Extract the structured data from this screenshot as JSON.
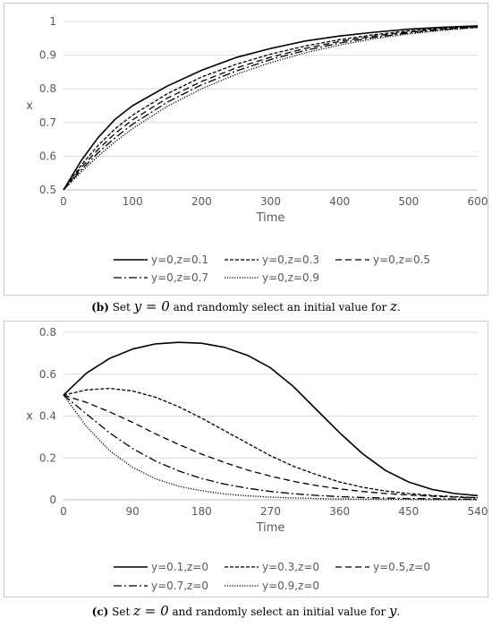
{
  "chart_data": [
    {
      "type": "line",
      "xlabel": "Time",
      "ylabel": "x",
      "xlim": [
        0,
        600
      ],
      "ylim": [
        0.5,
        1
      ],
      "xticks": [
        0,
        100,
        200,
        300,
        400,
        500,
        600
      ],
      "yticks": [
        0.5,
        0.6,
        0.7,
        0.8,
        0.9,
        1
      ],
      "grid": "horizontal",
      "legend": "bottom",
      "series": [
        {
          "name": "y=0,z=0.1",
          "dash": "solid",
          "x": [
            0,
            25,
            50,
            75,
            100,
            150,
            200,
            250,
            300,
            350,
            400,
            450,
            500,
            550,
            600
          ],
          "y": [
            0.5,
            0.585,
            0.655,
            0.71,
            0.75,
            0.808,
            0.855,
            0.893,
            0.92,
            0.942,
            0.957,
            0.968,
            0.977,
            0.983,
            0.987
          ]
        },
        {
          "name": "y=0,z=0.3",
          "dash": "shortdash",
          "x": [
            0,
            25,
            50,
            75,
            100,
            150,
            200,
            250,
            300,
            350,
            400,
            450,
            500,
            550,
            600
          ],
          "y": [
            0.5,
            0.572,
            0.632,
            0.682,
            0.722,
            0.785,
            0.835,
            0.873,
            0.903,
            0.927,
            0.946,
            0.961,
            0.972,
            0.98,
            0.985
          ]
        },
        {
          "name": "y=0,z=0.5",
          "dash": "longdash",
          "x": [
            0,
            25,
            50,
            75,
            100,
            150,
            200,
            250,
            300,
            350,
            400,
            450,
            500,
            550,
            600
          ],
          "y": [
            0.5,
            0.565,
            0.62,
            0.668,
            0.708,
            0.772,
            0.822,
            0.862,
            0.894,
            0.92,
            0.941,
            0.957,
            0.969,
            0.978,
            0.984
          ]
        },
        {
          "name": "y=0,z=0.7",
          "dash": "dashdot",
          "x": [
            0,
            25,
            50,
            75,
            100,
            150,
            200,
            250,
            300,
            350,
            400,
            450,
            500,
            550,
            600
          ],
          "y": [
            0.5,
            0.558,
            0.61,
            0.655,
            0.695,
            0.76,
            0.812,
            0.853,
            0.887,
            0.914,
            0.936,
            0.953,
            0.966,
            0.976,
            0.983
          ]
        },
        {
          "name": "y=0,z=0.9",
          "dash": "dotted",
          "x": [
            0,
            25,
            50,
            75,
            100,
            150,
            200,
            250,
            300,
            350,
            400,
            450,
            500,
            550,
            600
          ],
          "y": [
            0.5,
            0.552,
            0.6,
            0.643,
            0.682,
            0.748,
            0.8,
            0.843,
            0.878,
            0.907,
            0.93,
            0.949,
            0.963,
            0.974,
            0.982
          ]
        }
      ]
    },
    {
      "type": "line",
      "xlabel": "Time",
      "ylabel": "x",
      "xlim": [
        0,
        540
      ],
      "ylim": [
        0,
        0.8
      ],
      "xticks": [
        0,
        90,
        180,
        270,
        360,
        450,
        540
      ],
      "yticks": [
        0,
        0.2,
        0.4,
        0.6,
        0.8
      ],
      "grid": "horizontal",
      "legend": "bottom",
      "series": [
        {
          "name": "y=0.1,z=0",
          "dash": "solid",
          "x": [
            0,
            30,
            60,
            90,
            120,
            150,
            180,
            210,
            240,
            270,
            300,
            330,
            360,
            390,
            420,
            450,
            480,
            510,
            540
          ],
          "y": [
            0.5,
            0.605,
            0.675,
            0.72,
            0.745,
            0.752,
            0.748,
            0.728,
            0.69,
            0.63,
            0.54,
            0.43,
            0.32,
            0.22,
            0.14,
            0.085,
            0.05,
            0.03,
            0.02
          ]
        },
        {
          "name": "y=0.3,z=0",
          "dash": "shortdash",
          "x": [
            0,
            30,
            60,
            90,
            120,
            150,
            180,
            210,
            240,
            270,
            300,
            330,
            360,
            390,
            420,
            450,
            480,
            510,
            540
          ],
          "y": [
            0.5,
            0.525,
            0.532,
            0.52,
            0.49,
            0.445,
            0.39,
            0.33,
            0.27,
            0.21,
            0.16,
            0.12,
            0.085,
            0.06,
            0.042,
            0.03,
            0.021,
            0.015,
            0.01
          ]
        },
        {
          "name": "y=0.5,z=0",
          "dash": "longdash",
          "x": [
            0,
            30,
            60,
            90,
            120,
            150,
            180,
            210,
            240,
            270,
            300,
            330,
            360,
            390,
            420,
            450,
            480,
            510,
            540
          ],
          "y": [
            0.5,
            0.465,
            0.42,
            0.37,
            0.315,
            0.265,
            0.218,
            0.178,
            0.142,
            0.113,
            0.088,
            0.068,
            0.052,
            0.04,
            0.03,
            0.023,
            0.017,
            0.013,
            0.01
          ]
        },
        {
          "name": "y=0.7,z=0",
          "dash": "dashdot",
          "x": [
            0,
            30,
            60,
            90,
            120,
            150,
            180,
            210,
            240,
            270,
            300,
            330,
            360,
            390,
            420,
            450,
            480,
            510,
            540
          ],
          "y": [
            0.5,
            0.41,
            0.32,
            0.245,
            0.185,
            0.138,
            0.102,
            0.075,
            0.055,
            0.04,
            0.029,
            0.021,
            0.015,
            0.011,
            0.008,
            0.006,
            0.005,
            0.004,
            0.003
          ]
        },
        {
          "name": "y=0.9,z=0",
          "dash": "dotted",
          "x": [
            0,
            30,
            60,
            90,
            120,
            150,
            180,
            210,
            240,
            270,
            300,
            330,
            360,
            390,
            420,
            450,
            480,
            510,
            540
          ],
          "y": [
            0.5,
            0.35,
            0.235,
            0.155,
            0.1,
            0.065,
            0.043,
            0.028,
            0.019,
            0.013,
            0.009,
            0.006,
            0.004,
            0.003,
            0.002,
            0.002,
            0.001,
            0.001,
            0.001
          ]
        }
      ]
    }
  ],
  "captions": {
    "b": {
      "tag": "(b)",
      "before": "Set",
      "eq": "y = 0",
      "middle": "and randomly select an initial value for",
      "var": "z",
      "end": "."
    },
    "c": {
      "tag": "(c)",
      "before": "Set",
      "eq": "z = 0",
      "middle": "and randomly select an initial value for",
      "var": "y",
      "end": "."
    }
  }
}
